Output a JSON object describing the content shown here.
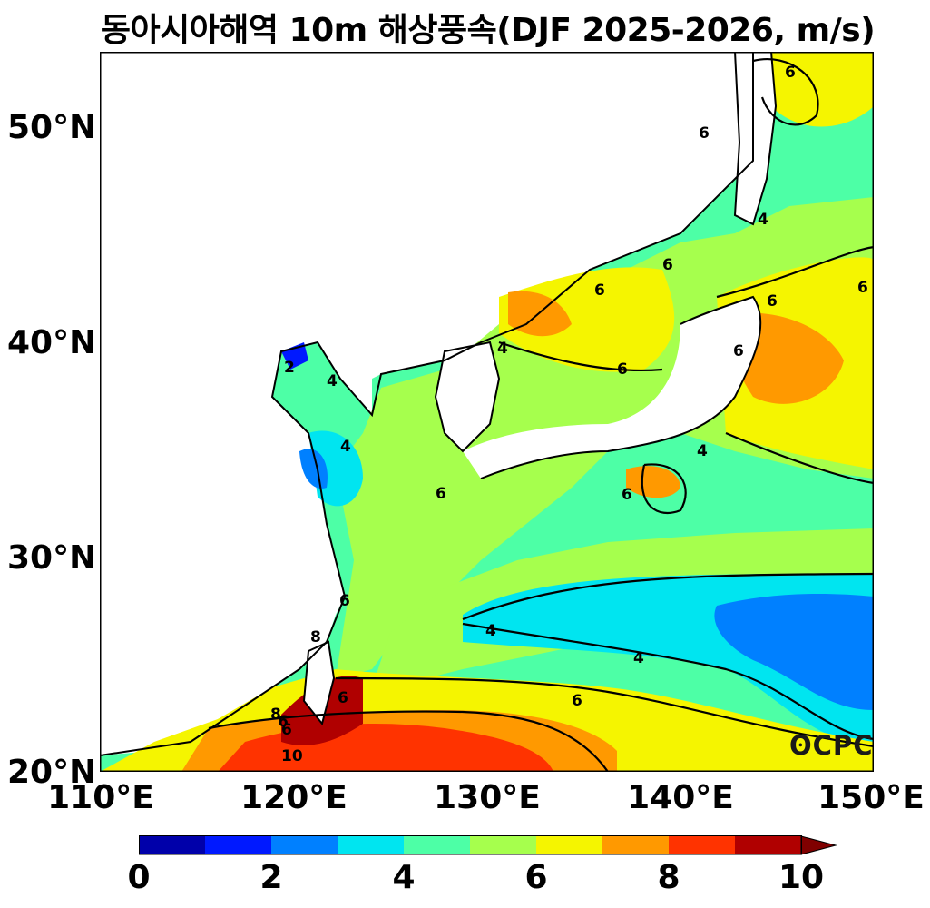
{
  "title": "동아시아해역 10m 해상풍속(DJF 2025-2026, m/s)",
  "logo_text": "ʘCPC",
  "axes": {
    "y_ticks": [
      "50°N",
      "40°N",
      "30°N",
      "20°N"
    ],
    "x_ticks": [
      "110°E",
      "120°E",
      "130°E",
      "140°E",
      "150°E"
    ]
  },
  "colorbar": {
    "labels": [
      "0",
      "2",
      "4",
      "6",
      "8",
      "10"
    ],
    "colors": [
      "#0000aa",
      "#0019ff",
      "#0080ff",
      "#00e5f0",
      "#4dffa6",
      "#a6ff4d",
      "#f5f500",
      "#ff9900",
      "#ff3300",
      "#b00000"
    ],
    "extend_color": "#800000"
  },
  "contour_labels": [
    "6",
    "6",
    "4",
    "6",
    "6",
    "6",
    "6",
    "6",
    "4",
    "6",
    "6",
    "4",
    "6",
    "2",
    "4",
    "4",
    "6",
    "6",
    "6",
    "8",
    "6",
    "4",
    "4",
    "6",
    "8",
    "10"
  ],
  "chart_data": {
    "type": "heatmap",
    "title": "동아시아해역 10m 해상풍속(DJF 2025-2026, m/s)",
    "variable": "10m wind speed",
    "units": "m/s",
    "lon_range": [
      110,
      150
    ],
    "lat_range": [
      20,
      53.5
    ],
    "x_ticks": [
      110,
      120,
      130,
      140,
      150
    ],
    "y_ticks": [
      20,
      30,
      40,
      50
    ],
    "levels": [
      0,
      1,
      2,
      3,
      4,
      5,
      6,
      7,
      8,
      9,
      10
    ],
    "extend": "max",
    "contour_levels": [
      2,
      4,
      6,
      8,
      10
    ]
  }
}
